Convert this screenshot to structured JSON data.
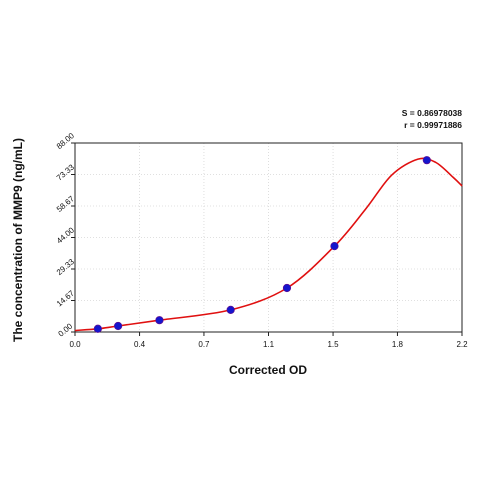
{
  "chart_data": {
    "type": "scatter",
    "title": "",
    "xlabel": "Corrected OD",
    "ylabel": "The concentration of MMP9 (ng/mL)",
    "xlim": [
      0.0,
      2.2
    ],
    "ylim": [
      0.0,
      88.0
    ],
    "x_ticks": [
      "0.0",
      "0.4",
      "0.7",
      "1.1",
      "1.5",
      "1.8",
      "2.2"
    ],
    "x_tick_values": [
      0.0,
      0.367,
      0.733,
      1.1,
      1.467,
      1.833,
      2.2
    ],
    "y_ticks": [
      "0.00",
      "14.67",
      "29.33",
      "44.00",
      "58.67",
      "73.33",
      "88.00"
    ],
    "y_tick_values": [
      0.0,
      14.67,
      29.33,
      44.0,
      58.67,
      73.33,
      88.0
    ],
    "grid": true,
    "statistics": {
      "s_label": "S = 0.86978038",
      "r_label": "r = 0.99971886"
    },
    "series": [
      {
        "kind": "points",
        "color": "#1515cc",
        "x": [
          0.13,
          0.245,
          0.48,
          0.885,
          1.205,
          1.475,
          2.0
        ],
        "y": [
          1.5,
          2.8,
          5.5,
          10.3,
          20.5,
          40.0,
          80.0
        ]
      },
      {
        "kind": "fitted-curve",
        "color": "#e01010",
        "x": [
          0.0,
          0.13,
          0.245,
          0.48,
          0.885,
          1.205,
          1.475,
          1.65,
          1.8,
          1.95,
          2.05,
          2.15,
          2.2
        ],
        "y": [
          0.7,
          1.5,
          2.8,
          5.5,
          10.3,
          20.5,
          40.0,
          57.0,
          73.0,
          80.5,
          79.0,
          72.0,
          68.0
        ]
      }
    ]
  }
}
